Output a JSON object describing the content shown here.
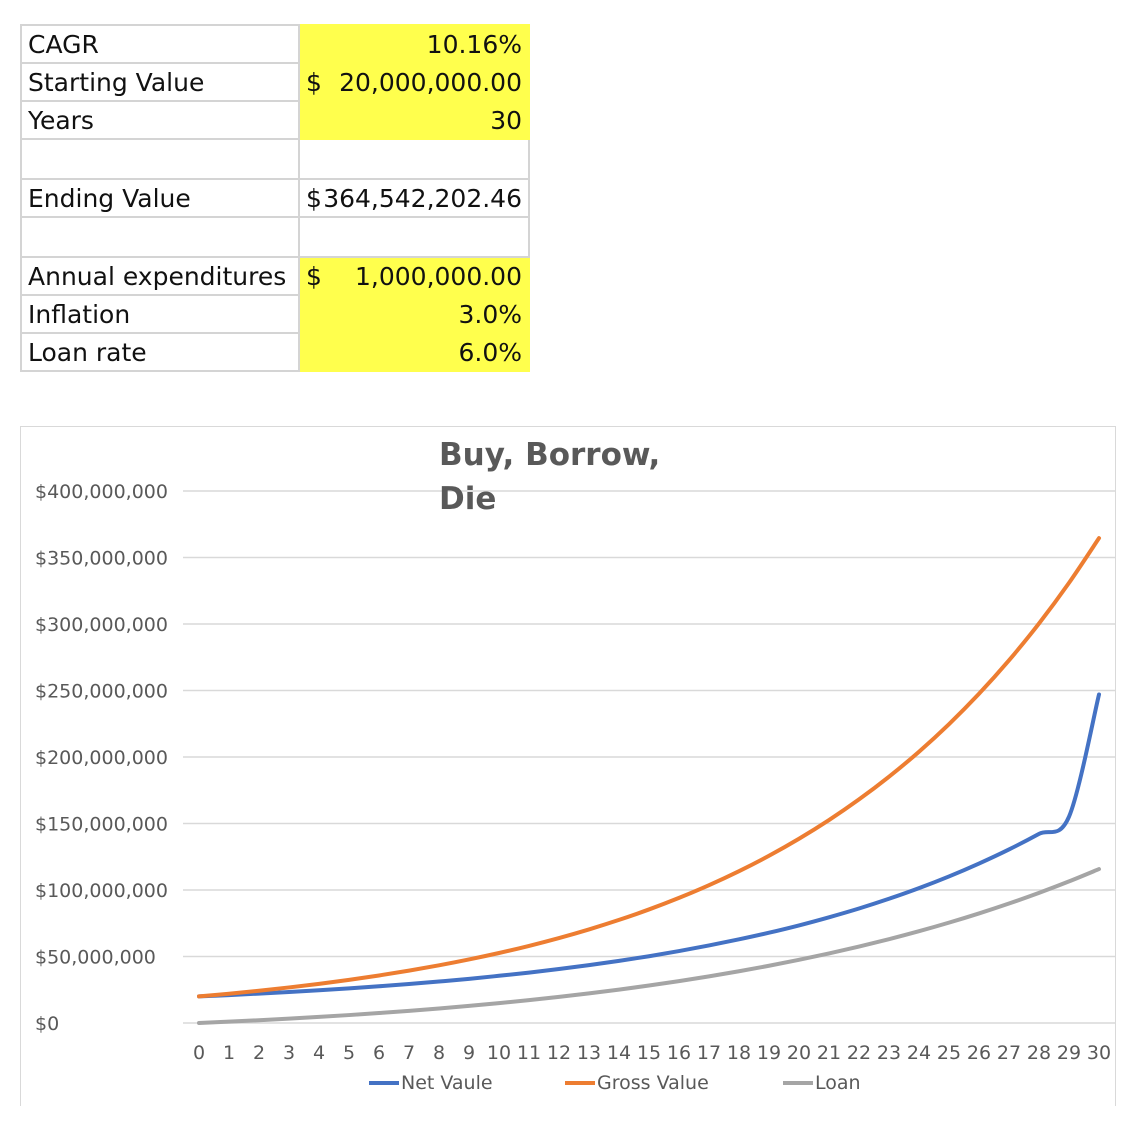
{
  "sheet": {
    "rows": [
      {
        "label": "CAGR",
        "currency": "",
        "value": "10.16%",
        "highlight": true
      },
      {
        "label": "Starting Value",
        "currency": "$",
        "value": "20,000,000.00",
        "highlight": true
      },
      {
        "label": "Years",
        "currency": "",
        "value": "30",
        "highlight": true
      },
      {
        "label": "",
        "currency": "",
        "value": "",
        "highlight": false
      },
      {
        "label": "Ending Value",
        "currency": "$",
        "value": "364,542,202.46",
        "highlight": false
      },
      {
        "label": "",
        "currency": "",
        "value": "",
        "highlight": false
      },
      {
        "label": "Annual expenditures",
        "currency": "$",
        "value": "1,000,000.00",
        "highlight": true
      },
      {
        "label": "Inflation",
        "currency": "",
        "value": "3.0%",
        "highlight": true
      },
      {
        "label": "Loan rate",
        "currency": "",
        "value": "6.0%",
        "highlight": true
      }
    ],
    "highlight_color": "#ffff4d"
  },
  "chart_data": {
    "type": "line",
    "title": "Buy, Borrow, Die",
    "xlabel": "",
    "ylabel": "",
    "x": [
      0,
      1,
      2,
      3,
      4,
      5,
      6,
      7,
      8,
      9,
      10,
      11,
      12,
      13,
      14,
      15,
      16,
      17,
      18,
      19,
      20,
      21,
      22,
      23,
      24,
      25,
      26,
      27,
      28,
      29,
      30
    ],
    "ylim": [
      0,
      400000000
    ],
    "yticks": [
      0,
      50000000,
      100000000,
      150000000,
      200000000,
      250000000,
      300000000,
      350000000,
      400000000
    ],
    "ytick_labels": [
      "$0",
      "$50,000,000",
      "$100,000,000",
      "$150,000,000",
      "$200,000,000",
      "$250,000,000",
      "$300,000,000",
      "$350,000,000",
      "$400,000,000"
    ],
    "grid": true,
    "legend": "bottom",
    "series": [
      {
        "name": "Net Vaule",
        "color": "#4472c4",
        "values": [
          20000000,
          21000000,
          22100000,
          23300000,
          24600000,
          26000000,
          27600000,
          29300000,
          31200000,
          33200000,
          35500000,
          37900000,
          40600000,
          43500000,
          46700000,
          50200000,
          54100000,
          58300000,
          62900000,
          67900000,
          73400000,
          79500000,
          86100000,
          93400000,
          101400000,
          110200000,
          119900000,
          130500000,
          142200000,
          155100000,
          247000000
        ]
      },
      {
        "name": "Gross Value",
        "color": "#ed7d31",
        "values": [
          20000000,
          22032000,
          24270500,
          26736400,
          29452800,
          32445200,
          35741600,
          39373000,
          43373300,
          47780000,
          52634400,
          57982000,
          63872800,
          70362300,
          77511100,
          85386200,
          94061400,
          103618000,
          114146000,
          125743000,
          138519000,
          152592000,
          168096000,
          185174000,
          203988000,
          224713000,
          247543000,
          272694000,
          300399000,
          330919000,
          364542000
        ]
      },
      {
        "name": "Loan",
        "color": "#a5a5a5",
        "values": [
          0,
          1000000,
          2090000,
          3276000,
          4566000,
          5967000,
          7487000,
          9135000,
          10920000,
          12851000,
          14940000,
          17196000,
          19634000,
          22266000,
          25107000,
          28172000,
          31478000,
          35043000,
          38885000,
          43025000,
          47485000,
          52288000,
          57460000,
          63027000,
          69018000,
          75463000,
          82395000,
          89849000,
          97862000,
          106474000,
          115730000
        ]
      }
    ]
  }
}
